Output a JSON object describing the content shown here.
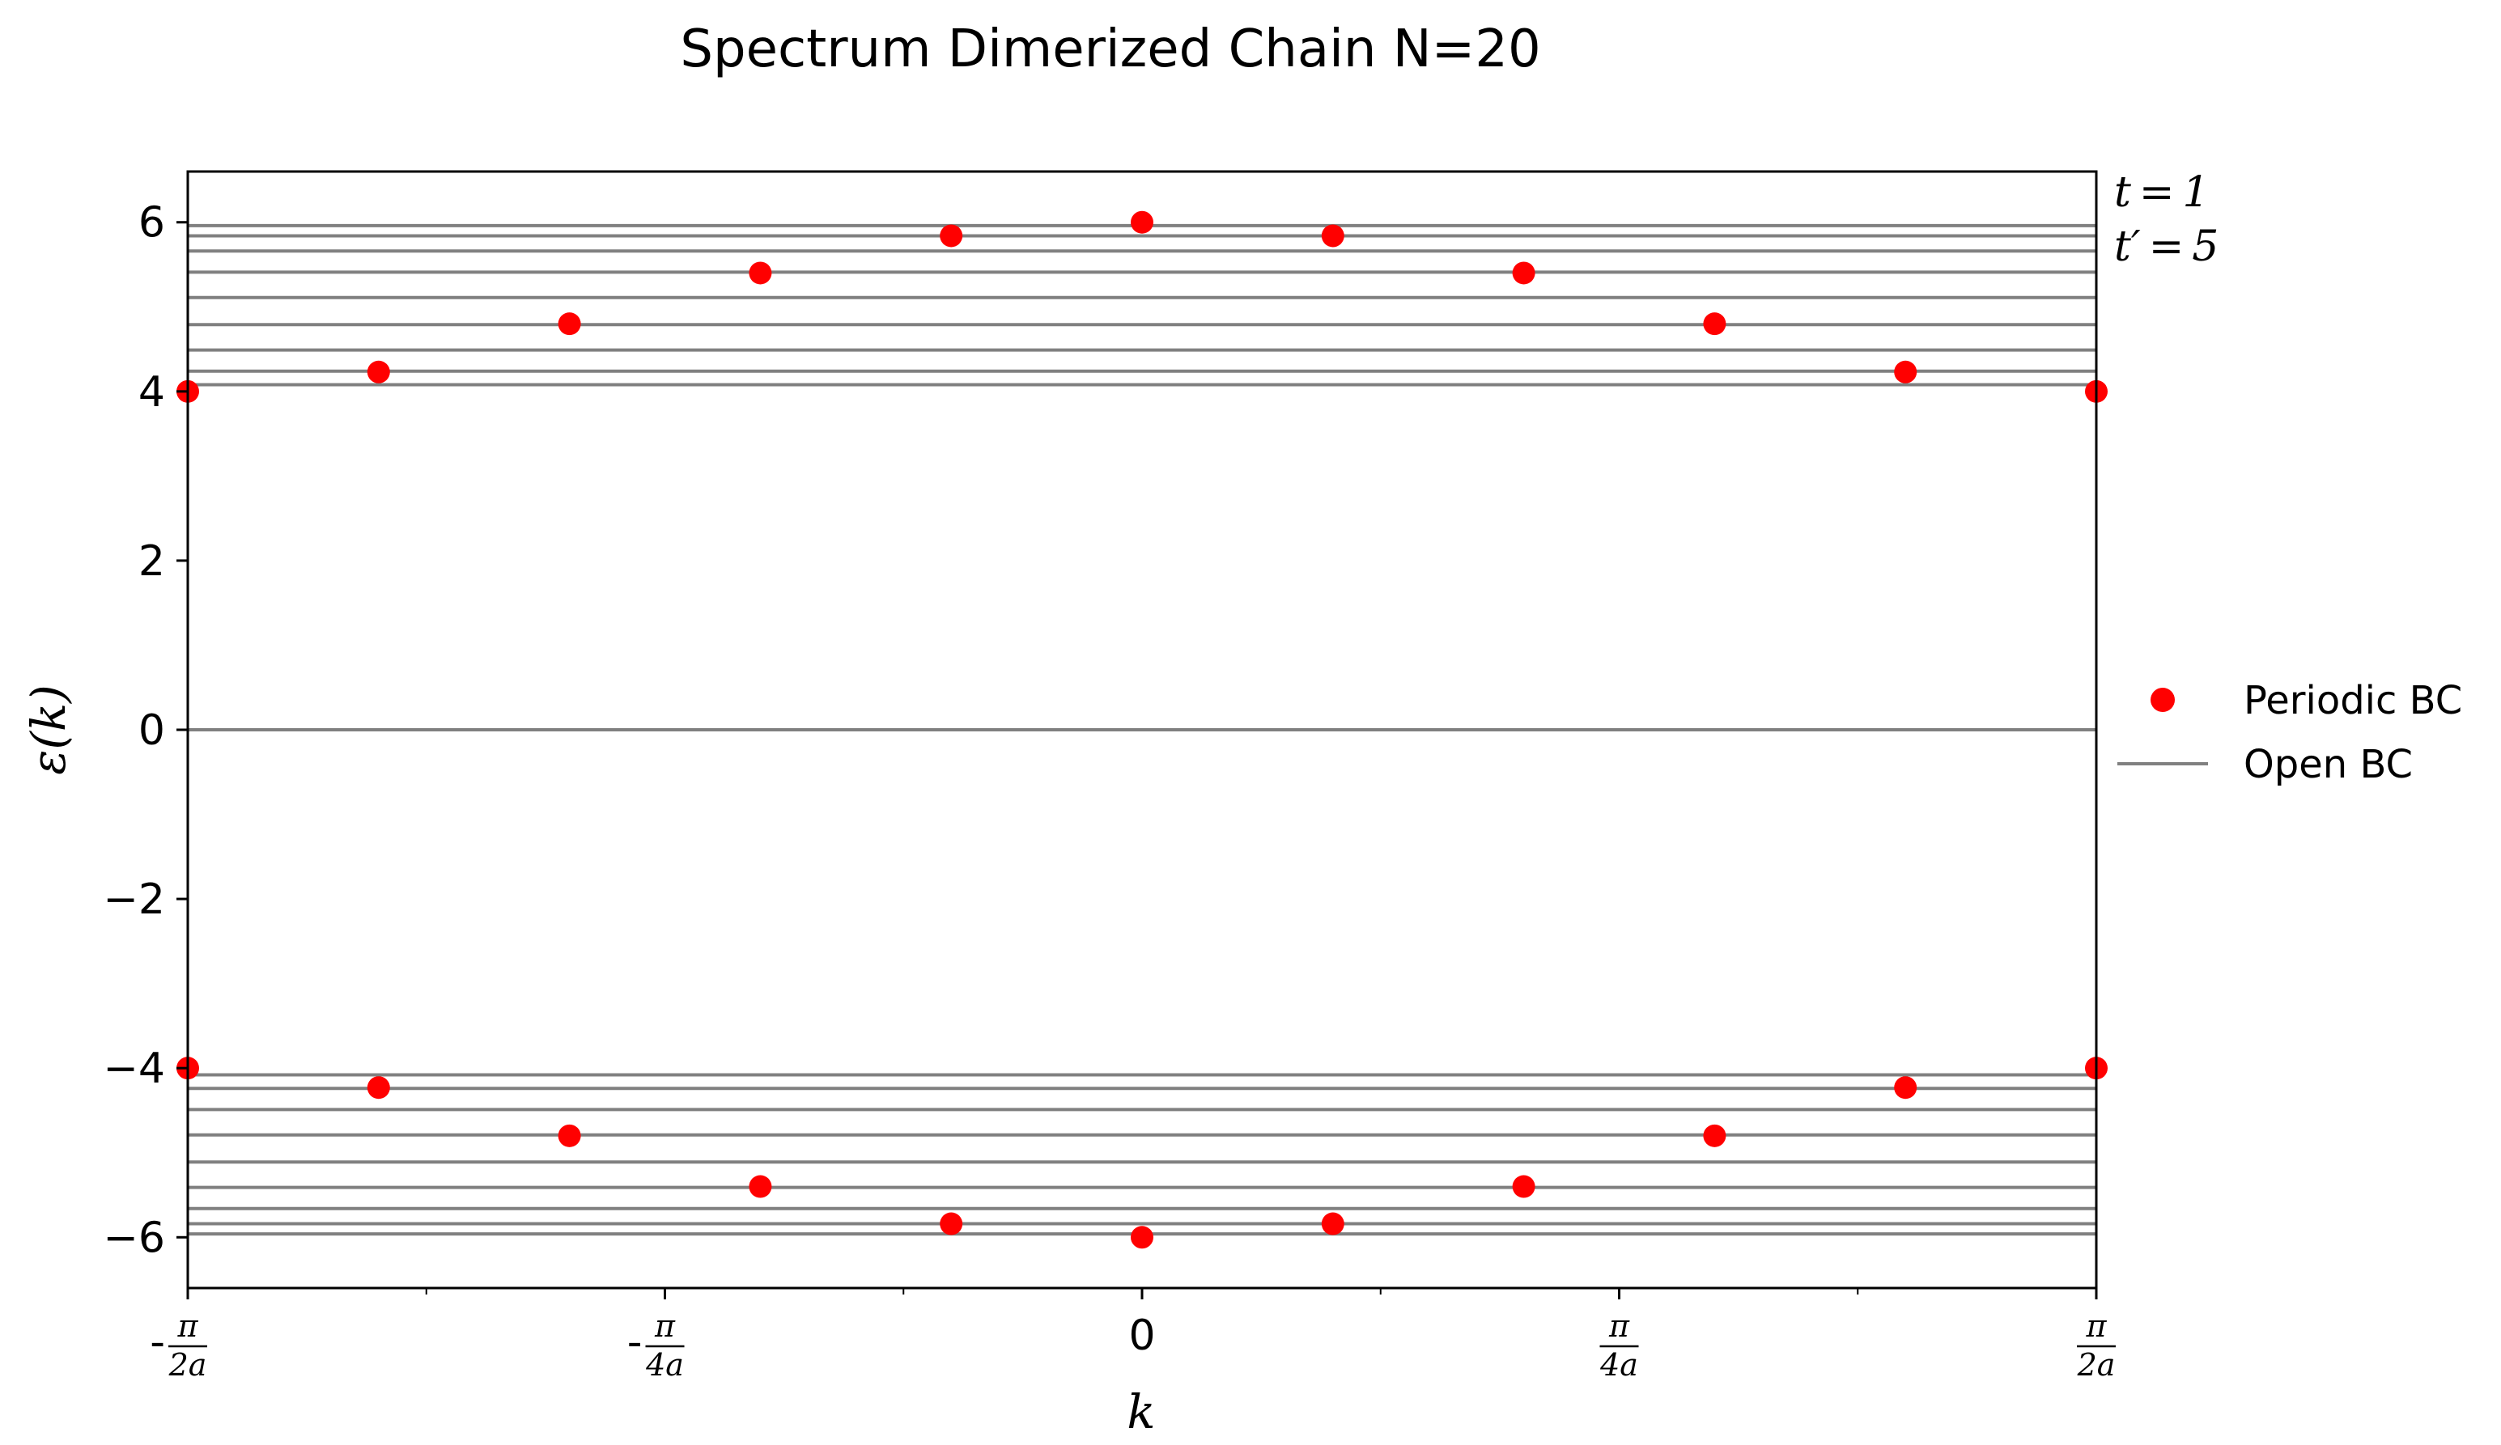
{
  "chart_data": {
    "type": "scatter",
    "title": "Spectrum Dimerized Chain N=20",
    "xlabel": "k",
    "ylabel": "ε(k)",
    "xlim": [
      -0.5,
      0.5
    ],
    "ylim": [
      -6.6,
      6.6
    ],
    "x_unit": "π/a",
    "grid": false,
    "legend_position": "right",
    "yticks": [
      -6,
      -4,
      -2,
      0,
      2,
      4,
      6
    ],
    "ytick_labels": [
      "−6",
      "−4",
      "−2",
      "0",
      "2",
      "4",
      "6"
    ],
    "xticks": [
      {
        "value": -0.5,
        "prefix": "-",
        "num": "π",
        "den": "2a"
      },
      {
        "value": -0.25,
        "prefix": "-",
        "num": "π",
        "den": "4a"
      },
      {
        "value": 0,
        "prefix": "",
        "num": "",
        "den": "",
        "plain": "0"
      },
      {
        "value": 0.25,
        "prefix": "",
        "num": "π",
        "den": "4a"
      },
      {
        "value": 0.5,
        "prefix": "",
        "num": "π",
        "den": "2a"
      }
    ],
    "minor_xticks": [
      -0.375,
      -0.125,
      0.125,
      0.375
    ],
    "series": [
      {
        "name": "Periodic BC",
        "kind": "scatter",
        "color": "#ff0000",
        "points": [
          [
            -0.5,
            4.0
          ],
          [
            -0.4,
            4.23
          ],
          [
            -0.3,
            4.8
          ],
          [
            -0.2,
            5.4
          ],
          [
            -0.1,
            5.84
          ],
          [
            0.0,
            6.0
          ],
          [
            0.1,
            5.84
          ],
          [
            0.2,
            5.4
          ],
          [
            0.3,
            4.8
          ],
          [
            0.4,
            4.23
          ],
          [
            0.5,
            4.0
          ],
          [
            -0.5,
            -4.0
          ],
          [
            -0.4,
            -4.23
          ],
          [
            -0.3,
            -4.8
          ],
          [
            -0.2,
            -5.4
          ],
          [
            -0.1,
            -5.84
          ],
          [
            0.0,
            -6.0
          ],
          [
            0.1,
            -5.84
          ],
          [
            0.2,
            -5.4
          ],
          [
            0.3,
            -4.8
          ],
          [
            0.4,
            -4.23
          ],
          [
            0.5,
            -4.0
          ]
        ]
      },
      {
        "name": "Open BC",
        "kind": "hlines",
        "color": "#808080",
        "levels": [
          5.96,
          5.84,
          5.66,
          5.41,
          5.11,
          4.79,
          4.49,
          4.24,
          4.08,
          0.0,
          -4.08,
          -4.24,
          -4.49,
          -4.79,
          -5.11,
          -5.41,
          -5.66,
          -5.84,
          -5.96
        ]
      }
    ],
    "annotations": [
      {
        "id": "t",
        "base": "t",
        "prime": "",
        "eq": "=",
        "value": "1"
      },
      {
        "id": "tp",
        "base": "t",
        "prime": "′",
        "eq": "=",
        "value": "5"
      }
    ]
  }
}
